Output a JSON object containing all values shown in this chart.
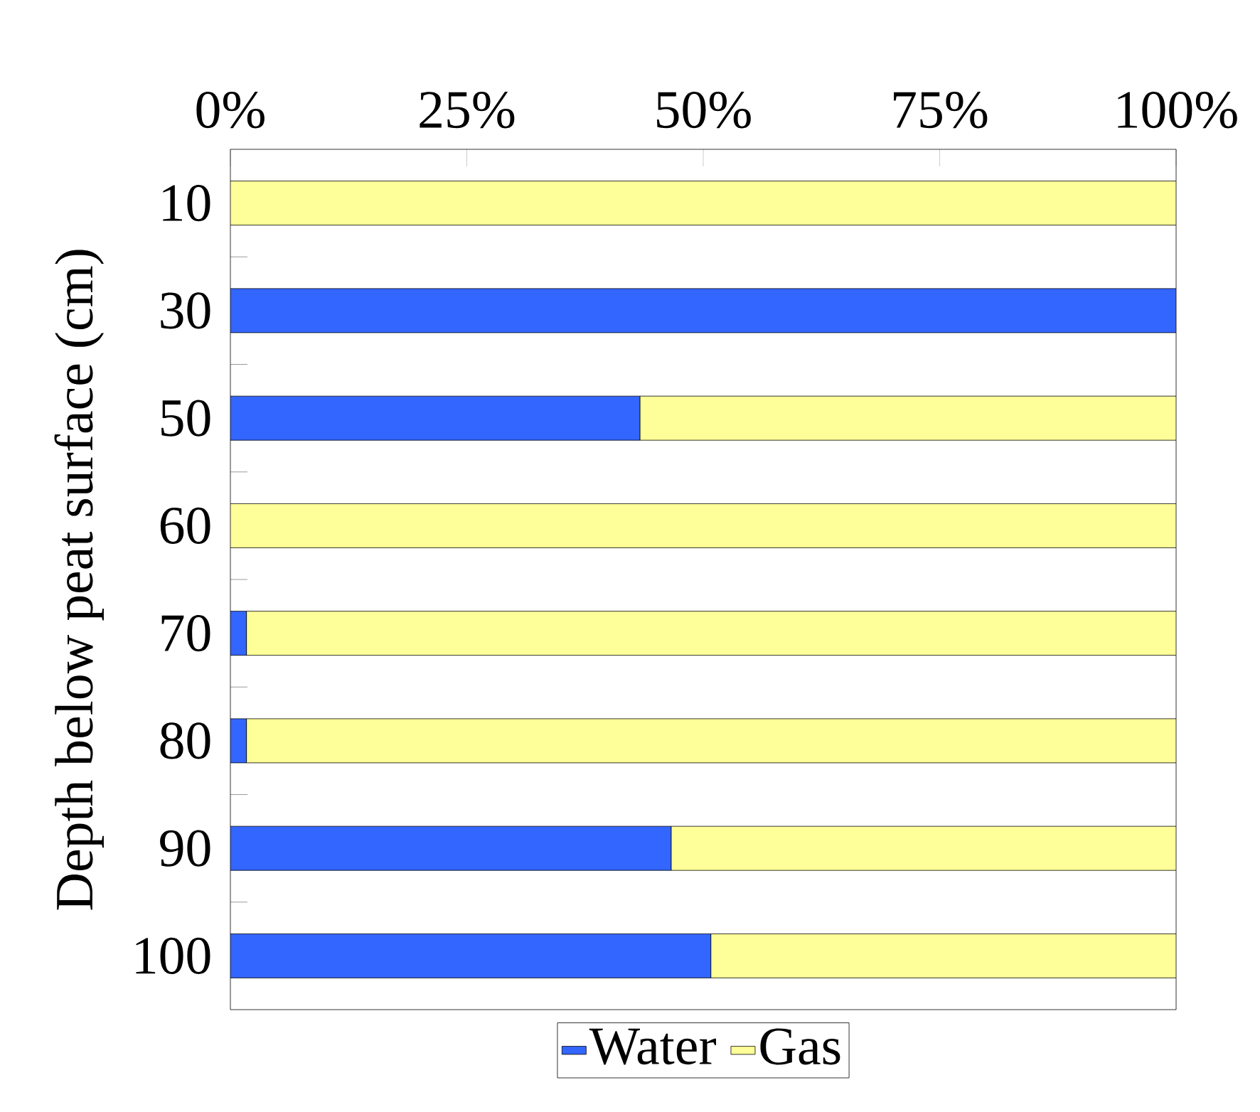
{
  "chart_data": {
    "type": "bar",
    "orientation": "horizontal",
    "stacked": true,
    "ylabel": "Depth below peat surface (cm)",
    "categories": [
      "10",
      "30",
      "50",
      "60",
      "70",
      "80",
      "90",
      "100"
    ],
    "series": [
      {
        "name": "Water",
        "color": "#3366ff",
        "values": [
          0,
          100,
          43.3,
          0,
          1.7,
          1.7,
          46.6,
          50.8
        ]
      },
      {
        "name": "Gas",
        "color": "#ffff99",
        "values": [
          100,
          0,
          56.7,
          100,
          98.3,
          98.3,
          53.4,
          49.2
        ]
      }
    ],
    "xlim": [
      0,
      100
    ],
    "xticks": [
      {
        "value": 0,
        "label": "0%"
      },
      {
        "value": 25,
        "label": "25%"
      },
      {
        "value": 50,
        "label": "50%"
      },
      {
        "value": 75,
        "label": "75%"
      },
      {
        "value": 100,
        "label": "100%"
      }
    ],
    "legend": "bottom",
    "grid": false
  }
}
